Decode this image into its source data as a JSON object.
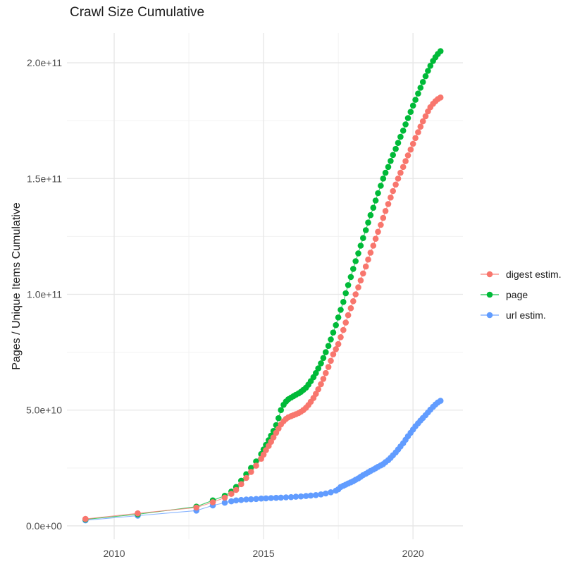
{
  "chart_data": {
    "type": "line",
    "marker": "circle",
    "title": "Crawl Size Cumulative",
    "xlabel": "",
    "ylabel": "Pages / Unique Items Cumulative",
    "value_unit": 1000000000,
    "x_domain": [
      2008.42,
      2021.67
    ],
    "y_domain_units": [
      -5.8,
      212.8
    ],
    "grid": true,
    "legend_position": "right",
    "x_ticks": {
      "major": [
        2010,
        2015,
        2020
      ],
      "labels": [
        "2010",
        "2015",
        "2020"
      ],
      "minor": [
        2012.5,
        2017.5
      ]
    },
    "y_ticks": {
      "major_units": [
        0,
        50,
        100,
        150,
        200
      ],
      "labels": [
        "0.0e+00",
        "5.0e+10",
        "1.0e+11",
        "1.5e+11",
        "2.0e+11"
      ],
      "minor_units": [
        25,
        75,
        125,
        175
      ]
    },
    "series": [
      {
        "name": "digest estim.",
        "color": "#F8766D",
        "z": 3,
        "points_unit_e9": [
          [
            2009.04,
            3.0
          ],
          [
            2010.79,
            5.4
          ],
          [
            2012.75,
            7.9
          ],
          [
            2013.3,
            10.2
          ],
          [
            2013.7,
            12.2
          ],
          [
            2013.92,
            13.8
          ],
          [
            2014.08,
            15.5
          ],
          [
            2014.25,
            18.0
          ],
          [
            2014.42,
            20.7
          ],
          [
            2014.58,
            23.3
          ],
          [
            2014.75,
            26.0
          ],
          [
            2014.92,
            29.0
          ],
          [
            2015.0,
            30.8
          ],
          [
            2015.08,
            32.7
          ],
          [
            2015.17,
            34.5
          ],
          [
            2015.25,
            36.3
          ],
          [
            2015.33,
            38.2
          ],
          [
            2015.42,
            40.2
          ],
          [
            2015.5,
            42.0
          ],
          [
            2015.58,
            43.8
          ],
          [
            2015.67,
            45.2
          ],
          [
            2015.75,
            46.2
          ],
          [
            2015.83,
            46.9
          ],
          [
            2015.92,
            47.4
          ],
          [
            2016.0,
            47.8
          ],
          [
            2016.08,
            48.2
          ],
          [
            2016.17,
            48.7
          ],
          [
            2016.25,
            49.3
          ],
          [
            2016.33,
            50.0
          ],
          [
            2016.42,
            51.0
          ],
          [
            2016.5,
            52.2
          ],
          [
            2016.58,
            53.6
          ],
          [
            2016.67,
            55.2
          ],
          [
            2016.75,
            57.0
          ],
          [
            2016.83,
            59.0
          ],
          [
            2016.92,
            61.2
          ],
          [
            2017.0,
            63.5
          ],
          [
            2017.08,
            66.0
          ],
          [
            2017.17,
            68.6
          ],
          [
            2017.25,
            71.3
          ],
          [
            2017.33,
            74.1
          ],
          [
            2017.42,
            76.3
          ],
          [
            2017.5,
            78.5
          ],
          [
            2017.58,
            81.5
          ],
          [
            2017.67,
            84.6
          ],
          [
            2017.75,
            87.8
          ],
          [
            2017.83,
            91.0
          ],
          [
            2017.92,
            94.0
          ],
          [
            2018.0,
            97.0
          ],
          [
            2018.08,
            100.0
          ],
          [
            2018.17,
            103.0
          ],
          [
            2018.25,
            106.0
          ],
          [
            2018.33,
            109.0
          ],
          [
            2018.42,
            112.0
          ],
          [
            2018.5,
            115.0
          ],
          [
            2018.58,
            118.0
          ],
          [
            2018.67,
            121.0
          ],
          [
            2018.75,
            124.0
          ],
          [
            2018.83,
            127.0
          ],
          [
            2018.92,
            130.0
          ],
          [
            2019.0,
            133.0
          ],
          [
            2019.08,
            136.0
          ],
          [
            2019.17,
            139.0
          ],
          [
            2019.25,
            141.8
          ],
          [
            2019.33,
            144.6
          ],
          [
            2019.42,
            147.4
          ],
          [
            2019.5,
            150.0
          ],
          [
            2019.58,
            152.5
          ],
          [
            2019.67,
            155.0
          ],
          [
            2019.75,
            157.5
          ],
          [
            2019.83,
            160.0
          ],
          [
            2019.92,
            162.5
          ],
          [
            2020.0,
            165.0
          ],
          [
            2020.08,
            167.5
          ],
          [
            2020.17,
            170.0
          ],
          [
            2020.25,
            172.4
          ],
          [
            2020.33,
            174.7
          ],
          [
            2020.42,
            176.9
          ],
          [
            2020.5,
            179.0
          ],
          [
            2020.58,
            180.8
          ],
          [
            2020.67,
            182.3
          ],
          [
            2020.75,
            183.4
          ],
          [
            2020.83,
            184.3
          ],
          [
            2020.92,
            185.0
          ]
        ]
      },
      {
        "name": "page",
        "color": "#00BA38",
        "z": 2,
        "points_unit_e9": [
          [
            2009.04,
            2.8
          ],
          [
            2010.79,
            5.0
          ],
          [
            2012.75,
            8.3
          ],
          [
            2013.3,
            11.0
          ],
          [
            2013.7,
            13.0
          ],
          [
            2013.92,
            14.8
          ],
          [
            2014.08,
            16.8
          ],
          [
            2014.25,
            19.5
          ],
          [
            2014.42,
            22.3
          ],
          [
            2014.58,
            25.0
          ],
          [
            2014.75,
            27.8
          ],
          [
            2014.92,
            31.0
          ],
          [
            2015.0,
            33.0
          ],
          [
            2015.08,
            35.0
          ],
          [
            2015.17,
            37.0
          ],
          [
            2015.25,
            39.0
          ],
          [
            2015.33,
            41.0
          ],
          [
            2015.42,
            43.5
          ],
          [
            2015.5,
            46.5
          ],
          [
            2015.58,
            50.0
          ],
          [
            2015.67,
            52.3
          ],
          [
            2015.75,
            53.7
          ],
          [
            2015.83,
            54.7
          ],
          [
            2015.92,
            55.4
          ],
          [
            2016.0,
            56.0
          ],
          [
            2016.08,
            56.6
          ],
          [
            2016.17,
            57.2
          ],
          [
            2016.25,
            57.9
          ],
          [
            2016.33,
            58.7
          ],
          [
            2016.42,
            59.7
          ],
          [
            2016.5,
            61.0
          ],
          [
            2016.58,
            62.5
          ],
          [
            2016.67,
            64.2
          ],
          [
            2016.75,
            66.0
          ],
          [
            2016.83,
            68.0
          ],
          [
            2016.92,
            70.2
          ],
          [
            2017.0,
            72.5
          ],
          [
            2017.08,
            75.0
          ],
          [
            2017.17,
            77.7
          ],
          [
            2017.25,
            80.5
          ],
          [
            2017.33,
            83.5
          ],
          [
            2017.42,
            86.7
          ],
          [
            2017.5,
            90.0
          ],
          [
            2017.58,
            93.3
          ],
          [
            2017.67,
            96.7
          ],
          [
            2017.75,
            100.5
          ],
          [
            2017.83,
            104.0
          ],
          [
            2017.92,
            107.5
          ],
          [
            2018.0,
            111.0
          ],
          [
            2018.08,
            114.3
          ],
          [
            2018.17,
            117.7
          ],
          [
            2018.25,
            121.0
          ],
          [
            2018.33,
            124.3
          ],
          [
            2018.42,
            127.7
          ],
          [
            2018.5,
            131.0
          ],
          [
            2018.58,
            134.2
          ],
          [
            2018.67,
            137.4
          ],
          [
            2018.75,
            140.5
          ],
          [
            2018.83,
            143.7
          ],
          [
            2018.92,
            146.9
          ],
          [
            2019.0,
            150.0
          ],
          [
            2019.08,
            152.5
          ],
          [
            2019.17,
            155.0
          ],
          [
            2019.25,
            157.6
          ],
          [
            2019.33,
            160.2
          ],
          [
            2019.42,
            162.8
          ],
          [
            2019.5,
            165.4
          ],
          [
            2019.58,
            168.0
          ],
          [
            2019.67,
            170.7
          ],
          [
            2019.75,
            173.4
          ],
          [
            2019.83,
            176.1
          ],
          [
            2019.92,
            178.8
          ],
          [
            2020.0,
            181.5
          ],
          [
            2020.08,
            184.0
          ],
          [
            2020.17,
            186.7
          ],
          [
            2020.25,
            189.2
          ],
          [
            2020.33,
            191.7
          ],
          [
            2020.42,
            194.2
          ],
          [
            2020.5,
            196.5
          ],
          [
            2020.58,
            198.7
          ],
          [
            2020.67,
            200.8
          ],
          [
            2020.75,
            202.4
          ],
          [
            2020.83,
            203.8
          ],
          [
            2020.92,
            205.0
          ]
        ]
      },
      {
        "name": "url estim.",
        "color": "#619CFF",
        "z": 1,
        "points_unit_e9": [
          [
            2009.04,
            2.4
          ],
          [
            2010.79,
            4.4
          ],
          [
            2012.75,
            6.6
          ],
          [
            2013.3,
            8.8
          ],
          [
            2013.7,
            10.0
          ],
          [
            2013.92,
            10.6
          ],
          [
            2014.08,
            11.0
          ],
          [
            2014.25,
            11.2
          ],
          [
            2014.42,
            11.4
          ],
          [
            2014.58,
            11.5
          ],
          [
            2014.75,
            11.6
          ],
          [
            2014.92,
            11.8
          ],
          [
            2015.08,
            11.9
          ],
          [
            2015.25,
            12.0
          ],
          [
            2015.42,
            12.1
          ],
          [
            2015.58,
            12.2
          ],
          [
            2015.75,
            12.3
          ],
          [
            2015.92,
            12.4
          ],
          [
            2016.08,
            12.6
          ],
          [
            2016.25,
            12.7
          ],
          [
            2016.42,
            12.9
          ],
          [
            2016.58,
            13.1
          ],
          [
            2016.75,
            13.3
          ],
          [
            2016.92,
            13.6
          ],
          [
            2017.08,
            14.0
          ],
          [
            2017.25,
            14.5
          ],
          [
            2017.42,
            15.2
          ],
          [
            2017.5,
            15.8
          ],
          [
            2017.58,
            16.8
          ],
          [
            2017.67,
            17.3
          ],
          [
            2017.75,
            17.8
          ],
          [
            2017.83,
            18.3
          ],
          [
            2017.92,
            18.8
          ],
          [
            2018.0,
            19.3
          ],
          [
            2018.08,
            19.9
          ],
          [
            2018.17,
            20.5
          ],
          [
            2018.25,
            21.2
          ],
          [
            2018.33,
            21.9
          ],
          [
            2018.42,
            22.5
          ],
          [
            2018.5,
            23.1
          ],
          [
            2018.58,
            23.7
          ],
          [
            2018.67,
            24.3
          ],
          [
            2018.75,
            24.9
          ],
          [
            2018.83,
            25.5
          ],
          [
            2018.92,
            26.1
          ],
          [
            2019.0,
            26.7
          ],
          [
            2019.08,
            27.5
          ],
          [
            2019.17,
            28.4
          ],
          [
            2019.25,
            29.4
          ],
          [
            2019.33,
            30.5
          ],
          [
            2019.42,
            31.7
          ],
          [
            2019.5,
            33.0
          ],
          [
            2019.58,
            34.3
          ],
          [
            2019.67,
            35.7
          ],
          [
            2019.75,
            37.2
          ],
          [
            2019.83,
            38.7
          ],
          [
            2019.92,
            40.2
          ],
          [
            2020.0,
            41.6
          ],
          [
            2020.08,
            43.0
          ],
          [
            2020.17,
            44.3
          ],
          [
            2020.25,
            45.5
          ],
          [
            2020.33,
            46.6
          ],
          [
            2020.42,
            47.8
          ],
          [
            2020.5,
            49.0
          ],
          [
            2020.58,
            50.2
          ],
          [
            2020.67,
            51.4
          ],
          [
            2020.75,
            52.4
          ],
          [
            2020.83,
            53.3
          ],
          [
            2020.92,
            54.0
          ]
        ]
      }
    ],
    "style": {
      "major_grid_color": "#E6E6E6",
      "minor_grid_color": "#F2F2F2",
      "tick_label_color": "#4d4d4d",
      "text_color": "#1a1a1a",
      "background": "#ffffff"
    }
  }
}
